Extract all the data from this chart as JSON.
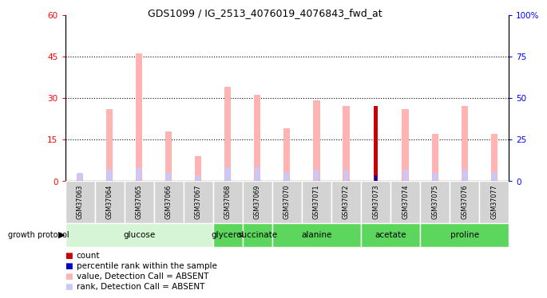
{
  "title": "GDS1099 / IG_2513_4076019_4076843_fwd_at",
  "samples": [
    "GSM37063",
    "GSM37064",
    "GSM37065",
    "GSM37066",
    "GSM37067",
    "GSM37068",
    "GSM37069",
    "GSM37070",
    "GSM37071",
    "GSM37072",
    "GSM37073",
    "GSM37074",
    "GSM37075",
    "GSM37076",
    "GSM37077"
  ],
  "count_values": [
    0,
    0,
    0,
    0,
    0,
    0,
    0,
    0,
    0,
    0,
    27,
    0,
    0,
    0,
    0
  ],
  "percentile_rank": [
    0,
    0,
    0,
    0,
    0,
    0,
    0,
    0,
    0,
    0,
    2,
    0,
    0,
    0,
    0
  ],
  "value_absent": [
    2.5,
    26,
    46,
    18,
    9,
    34,
    31,
    19,
    29,
    27,
    0,
    26,
    17,
    27,
    17
  ],
  "rank_absent": [
    3,
    4,
    5,
    3,
    2,
    5,
    5,
    3,
    4,
    4,
    0,
    4,
    3,
    4,
    3
  ],
  "groups_config": [
    {
      "label": "glucose",
      "indices": [
        0,
        1,
        2,
        3,
        4
      ],
      "color": "#d6f5d6"
    },
    {
      "label": "glycerol",
      "indices": [
        5
      ],
      "color": "#5cd65c"
    },
    {
      "label": "succinate",
      "indices": [
        6
      ],
      "color": "#5cd65c"
    },
    {
      "label": "alanine",
      "indices": [
        7,
        8,
        9
      ],
      "color": "#5cd65c"
    },
    {
      "label": "acetate",
      "indices": [
        10,
        11
      ],
      "color": "#5cd65c"
    },
    {
      "label": "proline",
      "indices": [
        12,
        13,
        14
      ],
      "color": "#5cd65c"
    }
  ],
  "ylim_left": [
    0,
    60
  ],
  "ylim_right": [
    0,
    100
  ],
  "yticks_left": [
    0,
    15,
    30,
    45,
    60
  ],
  "yticks_right": [
    0,
    25,
    50,
    75,
    100
  ],
  "color_count": "#cc0000",
  "color_rank": "#0000cc",
  "color_value_absent": "#ffb3b3",
  "color_rank_absent": "#c8c8ff",
  "legend_items": [
    {
      "label": "count",
      "color": "#cc0000"
    },
    {
      "label": "percentile rank within the sample",
      "color": "#0000cc"
    },
    {
      "label": "value, Detection Call = ABSENT",
      "color": "#ffb3b3"
    },
    {
      "label": "rank, Detection Call = ABSENT",
      "color": "#c8c8ff"
    }
  ]
}
